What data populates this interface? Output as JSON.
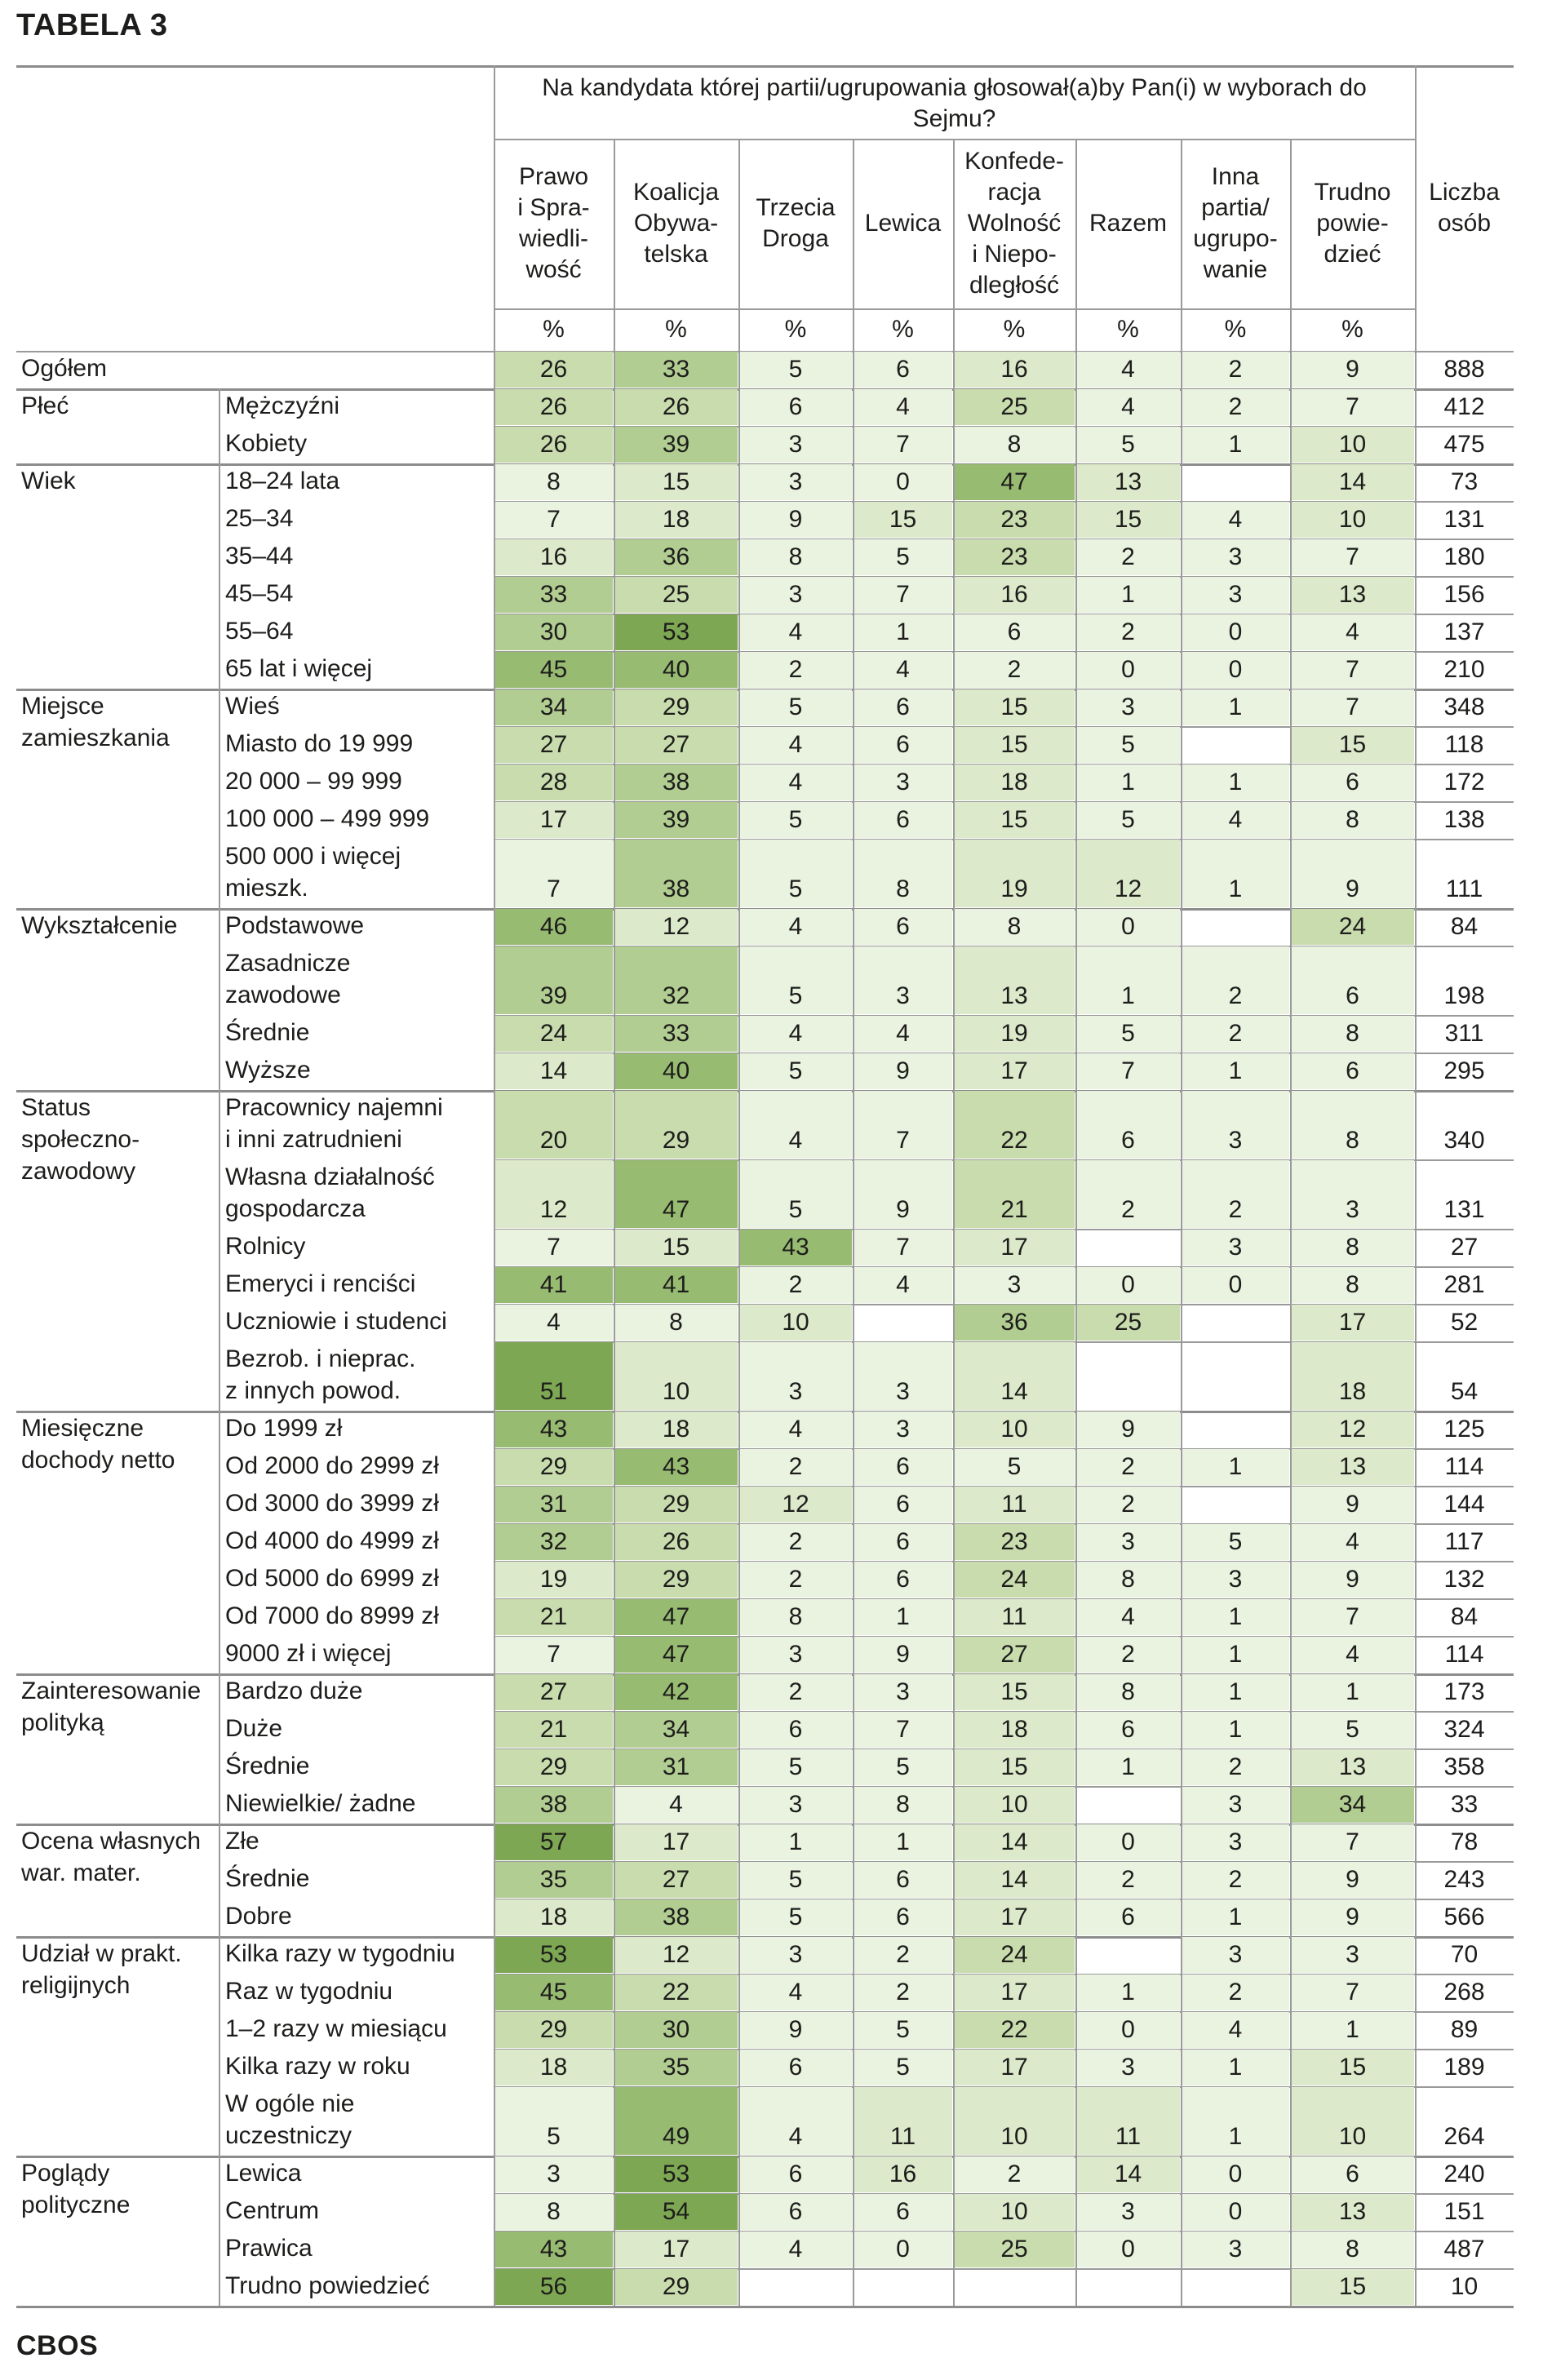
{
  "title": "TABELA 3",
  "footer": "CBOS",
  "question": "Na kandydata której partii/ugrupowania głosował(a)by Pan(i) w wyborach do Sejmu?",
  "columns": [
    {
      "label": "Prawo i Sprawiedliwość",
      "lines": [
        "Prawo",
        "i Spra-",
        "wiedli-",
        "wość"
      ],
      "unit": "%"
    },
    {
      "label": "Koalicja Obywatelska",
      "lines": [
        "Koalicja",
        "Obywa-",
        "telska"
      ],
      "unit": "%"
    },
    {
      "label": "Trzecia Droga",
      "lines": [
        "Trzecia",
        "Droga"
      ],
      "unit": "%"
    },
    {
      "label": "Lewica",
      "lines": [
        "Lewica"
      ],
      "unit": "%"
    },
    {
      "label": "Konfederacja Wolność i Niepodległość",
      "lines": [
        "Konfede-",
        "racja",
        "Wolność",
        "i Niepo-",
        "dległość"
      ],
      "unit": "%"
    },
    {
      "label": "Razem",
      "lines": [
        "Razem"
      ],
      "unit": "%"
    },
    {
      "label": "Inna partia/ugrupowanie",
      "lines": [
        "Inna",
        "partia/",
        "ugrupo-",
        "wanie"
      ],
      "unit": "%"
    },
    {
      "label": "Trudno powiedzieć",
      "lines": [
        "Trudno",
        "powie-",
        "dzieć"
      ],
      "unit": "%"
    }
  ],
  "count_column": {
    "label": "Liczba osób",
    "lines": [
      "Liczba",
      "osób"
    ]
  },
  "groups": [
    {
      "name": [
        "Ogółem"
      ],
      "rows": [
        {
          "label": [
            ""
          ],
          "values": [
            "26",
            "33",
            "5",
            "6",
            "16",
            "4",
            "2",
            "9"
          ],
          "n": "888"
        }
      ]
    },
    {
      "name": [
        "Płeć"
      ],
      "rows": [
        {
          "label": [
            "Mężczyźni"
          ],
          "values": [
            "26",
            "26",
            "6",
            "4",
            "25",
            "4",
            "2",
            "7"
          ],
          "n": "412"
        },
        {
          "label": [
            "Kobiety"
          ],
          "values": [
            "26",
            "39",
            "3",
            "7",
            "8",
            "5",
            "1",
            "10"
          ],
          "n": "475"
        }
      ]
    },
    {
      "name": [
        "Wiek"
      ],
      "rows": [
        {
          "label": [
            "18–24 lata"
          ],
          "values": [
            "8",
            "15",
            "3",
            "0",
            "47",
            "13",
            "",
            "14"
          ],
          "n": "73"
        },
        {
          "label": [
            "25–34"
          ],
          "values": [
            "7",
            "18",
            "9",
            "15",
            "23",
            "15",
            "4",
            "10"
          ],
          "n": "131"
        },
        {
          "label": [
            "35–44"
          ],
          "values": [
            "16",
            "36",
            "8",
            "5",
            "23",
            "2",
            "3",
            "7"
          ],
          "n": "180"
        },
        {
          "label": [
            "45–54"
          ],
          "values": [
            "33",
            "25",
            "3",
            "7",
            "16",
            "1",
            "3",
            "13"
          ],
          "n": "156"
        },
        {
          "label": [
            "55–64"
          ],
          "values": [
            "30",
            "53",
            "4",
            "1",
            "6",
            "2",
            "0",
            "4"
          ],
          "n": "137"
        },
        {
          "label": [
            "65 lat i więcej"
          ],
          "values": [
            "45",
            "40",
            "2",
            "4",
            "2",
            "0",
            "0",
            "7"
          ],
          "n": "210"
        }
      ]
    },
    {
      "name": [
        "Miejsce",
        "zamieszkania"
      ],
      "rows": [
        {
          "label": [
            "Wieś"
          ],
          "values": [
            "34",
            "29",
            "5",
            "6",
            "15",
            "3",
            "1",
            "7"
          ],
          "n": "348"
        },
        {
          "label": [
            "Miasto do 19 999"
          ],
          "values": [
            "27",
            "27",
            "4",
            "6",
            "15",
            "5",
            "",
            "15"
          ],
          "n": "118"
        },
        {
          "label": [
            "20 000 – 99 999"
          ],
          "values": [
            "28",
            "38",
            "4",
            "3",
            "18",
            "1",
            "1",
            "6"
          ],
          "n": "172"
        },
        {
          "label": [
            "100 000 – 499 999"
          ],
          "values": [
            "17",
            "39",
            "5",
            "6",
            "15",
            "5",
            "4",
            "8"
          ],
          "n": "138"
        },
        {
          "label": [
            "500 000 i więcej",
            "mieszk."
          ],
          "values": [
            "7",
            "38",
            "5",
            "8",
            "19",
            "12",
            "1",
            "9"
          ],
          "n": "111"
        }
      ]
    },
    {
      "name": [
        "Wykształcenie"
      ],
      "rows": [
        {
          "label": [
            "Podstawowe"
          ],
          "values": [
            "46",
            "12",
            "4",
            "6",
            "8",
            "0",
            "",
            "24"
          ],
          "n": "84"
        },
        {
          "label": [
            "Zasadnicze",
            "zawodowe"
          ],
          "values": [
            "39",
            "32",
            "5",
            "3",
            "13",
            "1",
            "2",
            "6"
          ],
          "n": "198"
        },
        {
          "label": [
            "Średnie"
          ],
          "values": [
            "24",
            "33",
            "4",
            "4",
            "19",
            "5",
            "2",
            "8"
          ],
          "n": "311"
        },
        {
          "label": [
            "Wyższe"
          ],
          "values": [
            "14",
            "40",
            "5",
            "9",
            "17",
            "7",
            "1",
            "6"
          ],
          "n": "295"
        }
      ]
    },
    {
      "name": [
        "Status",
        "społeczno-",
        "zawodowy"
      ],
      "rows": [
        {
          "label": [
            "Pracownicy najemni",
            "i inni zatrudnieni"
          ],
          "values": [
            "20",
            "29",
            "4",
            "7",
            "22",
            "6",
            "3",
            "8"
          ],
          "n": "340"
        },
        {
          "label": [
            "Własna działalność",
            "gospodarcza"
          ],
          "values": [
            "12",
            "47",
            "5",
            "9",
            "21",
            "2",
            "2",
            "3"
          ],
          "n": "131"
        },
        {
          "label": [
            "Rolnicy"
          ],
          "values": [
            "7",
            "15",
            "43",
            "7",
            "17",
            "",
            "3",
            "8"
          ],
          "n": "27"
        },
        {
          "label": [
            "Emeryci i renciści"
          ],
          "values": [
            "41",
            "41",
            "2",
            "4",
            "3",
            "0",
            "0",
            "8"
          ],
          "n": "281"
        },
        {
          "label": [
            "Uczniowie i studenci"
          ],
          "values": [
            "4",
            "8",
            "10",
            "",
            "36",
            "25",
            "",
            "17"
          ],
          "n": "52"
        },
        {
          "label": [
            "Bezrob. i nieprac.",
            "z innych powod."
          ],
          "values": [
            "51",
            "10",
            "3",
            "3",
            "14",
            "",
            "",
            "18"
          ],
          "n": "54"
        }
      ]
    },
    {
      "name": [
        "Miesięczne",
        "dochody netto"
      ],
      "rows": [
        {
          "label": [
            "Do 1999 zł"
          ],
          "values": [
            "43",
            "18",
            "4",
            "3",
            "10",
            "9",
            "",
            "12"
          ],
          "n": "125"
        },
        {
          "label": [
            "Od 2000 do 2999 zł"
          ],
          "values": [
            "29",
            "43",
            "2",
            "6",
            "5",
            "2",
            "1",
            "13"
          ],
          "n": "114"
        },
        {
          "label": [
            "Od 3000 do 3999 zł"
          ],
          "values": [
            "31",
            "29",
            "12",
            "6",
            "11",
            "2",
            "",
            "9"
          ],
          "n": "144"
        },
        {
          "label": [
            "Od 4000 do 4999 zł"
          ],
          "values": [
            "32",
            "26",
            "2",
            "6",
            "23",
            "3",
            "5",
            "4"
          ],
          "n": "117"
        },
        {
          "label": [
            "Od 5000 do 6999 zł"
          ],
          "values": [
            "19",
            "29",
            "2",
            "6",
            "24",
            "8",
            "3",
            "9"
          ],
          "n": "132"
        },
        {
          "label": [
            "Od 7000 do 8999 zł"
          ],
          "values": [
            "21",
            "47",
            "8",
            "1",
            "11",
            "4",
            "1",
            "7"
          ],
          "n": "84"
        },
        {
          "label": [
            "9000 zł i więcej"
          ],
          "values": [
            "7",
            "47",
            "3",
            "9",
            "27",
            "2",
            "1",
            "4"
          ],
          "n": "114"
        }
      ]
    },
    {
      "name": [
        "Zainteresowanie",
        "polityką"
      ],
      "rows": [
        {
          "label": [
            "Bardzo duże"
          ],
          "values": [
            "27",
            "42",
            "2",
            "3",
            "15",
            "8",
            "1",
            "1"
          ],
          "n": "173"
        },
        {
          "label": [
            "Duże"
          ],
          "values": [
            "21",
            "34",
            "6",
            "7",
            "18",
            "6",
            "1",
            "5"
          ],
          "n": "324"
        },
        {
          "label": [
            "Średnie"
          ],
          "values": [
            "29",
            "31",
            "5",
            "5",
            "15",
            "1",
            "2",
            "13"
          ],
          "n": "358"
        },
        {
          "label": [
            "Niewielkie/ żadne"
          ],
          "values": [
            "38",
            "4",
            "3",
            "8",
            "10",
            "",
            "3",
            "34"
          ],
          "n": "33"
        }
      ]
    },
    {
      "name": [
        "Ocena własnych",
        "war. mater."
      ],
      "rows": [
        {
          "label": [
            "Złe"
          ],
          "values": [
            "57",
            "17",
            "1",
            "1",
            "14",
            "0",
            "3",
            "7"
          ],
          "n": "78"
        },
        {
          "label": [
            "Średnie"
          ],
          "values": [
            "35",
            "27",
            "5",
            "6",
            "14",
            "2",
            "2",
            "9"
          ],
          "n": "243"
        },
        {
          "label": [
            "Dobre"
          ],
          "values": [
            "18",
            "38",
            "5",
            "6",
            "17",
            "6",
            "1",
            "9"
          ],
          "n": "566"
        }
      ]
    },
    {
      "name": [
        "Udział w prakt.",
        "religijnych"
      ],
      "rows": [
        {
          "label": [
            "Kilka razy w tygodniu"
          ],
          "values": [
            "53",
            "12",
            "3",
            "2",
            "24",
            "",
            "3",
            "3"
          ],
          "n": "70"
        },
        {
          "label": [
            "Raz w tygodniu"
          ],
          "values": [
            "45",
            "22",
            "4",
            "2",
            "17",
            "1",
            "2",
            "7"
          ],
          "n": "268"
        },
        {
          "label": [
            "1–2 razy w miesiącu"
          ],
          "values": [
            "29",
            "30",
            "9",
            "5",
            "22",
            "0",
            "4",
            "1"
          ],
          "n": "89"
        },
        {
          "label": [
            "Kilka razy w roku"
          ],
          "values": [
            "18",
            "35",
            "6",
            "5",
            "17",
            "3",
            "1",
            "15"
          ],
          "n": "189"
        },
        {
          "label": [
            "W ogóle nie",
            "uczestniczy"
          ],
          "values": [
            "5",
            "49",
            "4",
            "11",
            "10",
            "11",
            "1",
            "10"
          ],
          "n": "264"
        }
      ]
    },
    {
      "name": [
        "Poglądy",
        "polityczne"
      ],
      "rows": [
        {
          "label": [
            "Lewica"
          ],
          "values": [
            "3",
            "53",
            "6",
            "16",
            "2",
            "14",
            "0",
            "6"
          ],
          "n": "240"
        },
        {
          "label": [
            "Centrum"
          ],
          "values": [
            "8",
            "54",
            "6",
            "6",
            "10",
            "3",
            "0",
            "13"
          ],
          "n": "151"
        },
        {
          "label": [
            "Prawica"
          ],
          "values": [
            "43",
            "17",
            "4",
            "0",
            "25",
            "0",
            "3",
            "8"
          ],
          "n": "487"
        },
        {
          "label": [
            "Trudno powiedzieć"
          ],
          "values": [
            "56",
            "29",
            "",
            "",
            "",
            "",
            "",
            "15"
          ],
          "n": "10"
        }
      ]
    }
  ]
}
